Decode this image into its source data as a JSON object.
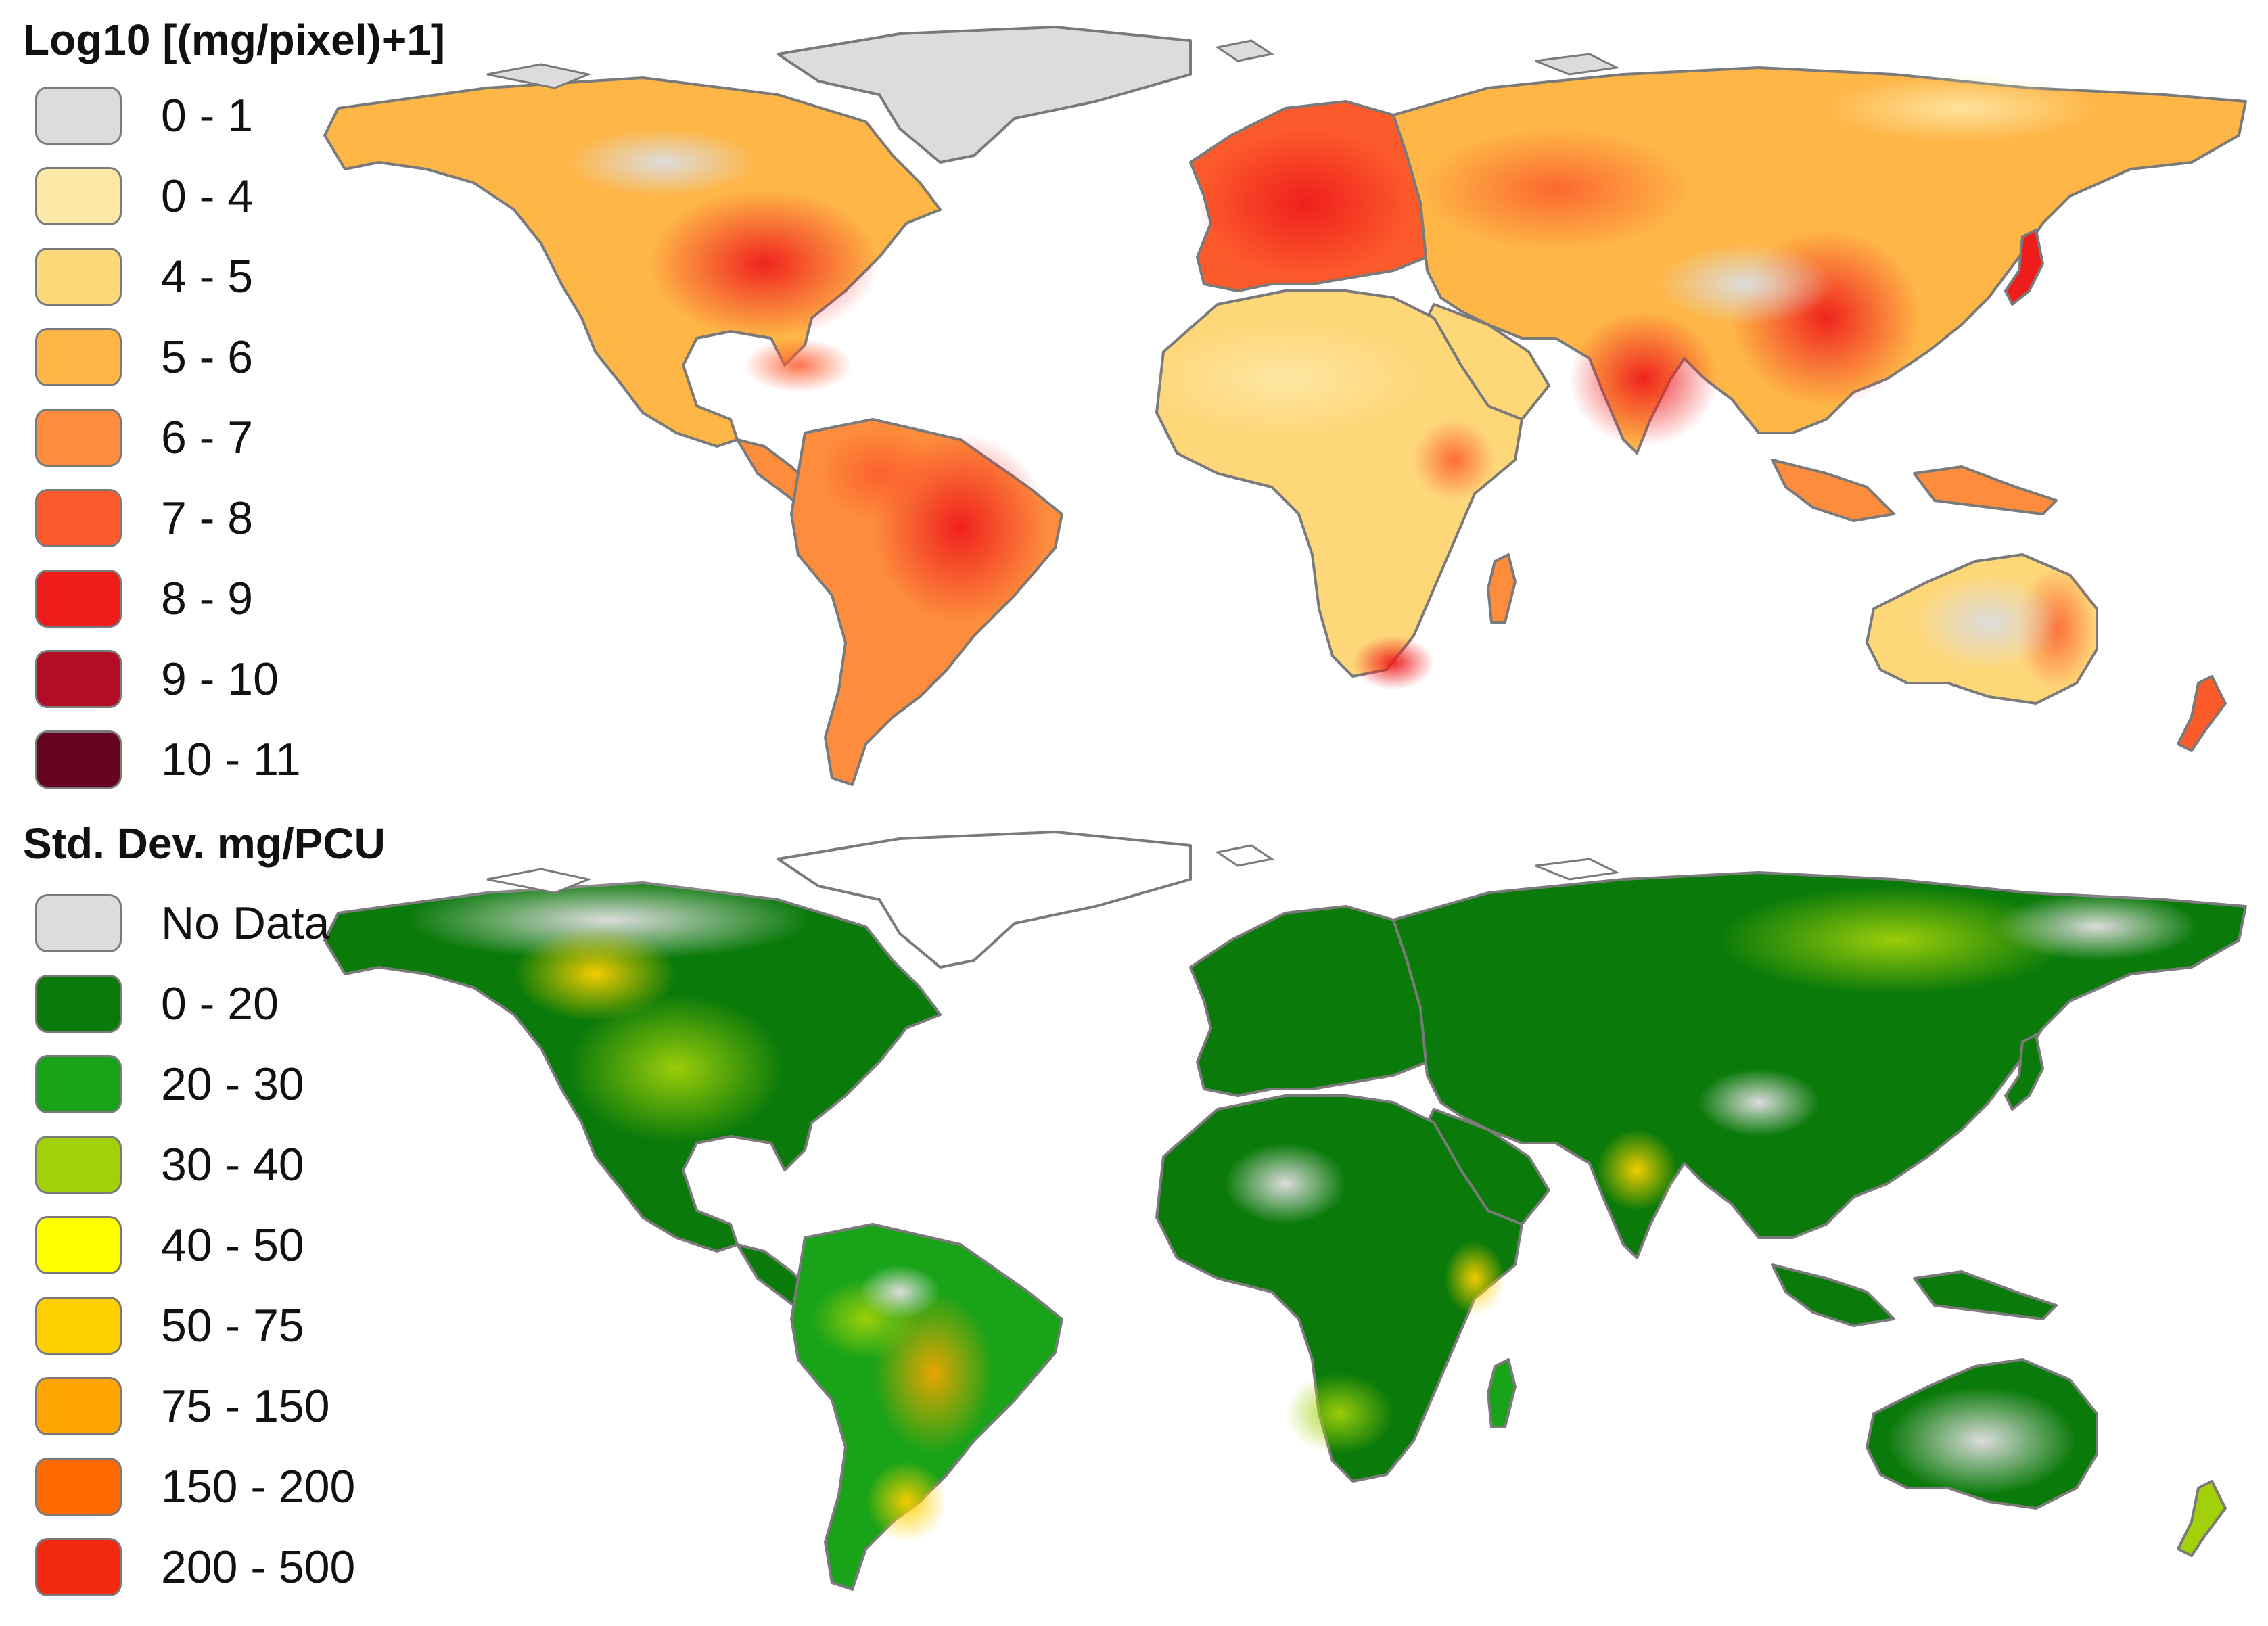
{
  "panels": [
    {
      "title": "Log10 [(mg/pixel)+1]",
      "legend": [
        {
          "label": "0 - 1",
          "color": "#dcdcdc"
        },
        {
          "label": "0 - 4",
          "color": "#fee8a7"
        },
        {
          "label": "4 - 5",
          "color": "#fed779"
        },
        {
          "label": "5 - 6",
          "color": "#feb647"
        },
        {
          "label": "6 - 7",
          "color": "#fd8d3c"
        },
        {
          "label": "7 - 8",
          "color": "#fc5a2b"
        },
        {
          "label": "8 - 9",
          "color": "#ef1c1c"
        },
        {
          "label": "9 - 10",
          "color": "#b30d26"
        },
        {
          "label": "10 - 11",
          "color": "#65041f"
        }
      ]
    },
    {
      "title": "Std. Dev. mg/PCU",
      "legend": [
        {
          "label": "No Data",
          "color": "#dcdcdc"
        },
        {
          "label": "0 - 20",
          "color": "#0a7a0a"
        },
        {
          "label": "20 - 30",
          "color": "#18a318"
        },
        {
          "label": "30 - 40",
          "color": "#a2d10a"
        },
        {
          "label": "40 - 50",
          "color": "#ffff00"
        },
        {
          "label": "50 - 75",
          "color": "#ffd000"
        },
        {
          "label": "75 - 150",
          "color": "#ffa500"
        },
        {
          "label": "150 - 200",
          "color": "#ff6a00"
        },
        {
          "label": "200 - 500",
          "color": "#f42a10"
        }
      ]
    }
  ]
}
